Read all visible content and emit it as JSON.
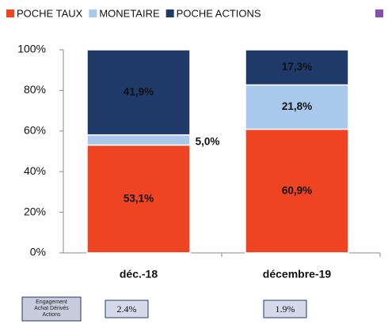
{
  "chart_data": {
    "type": "stacked_bar",
    "categories": [
      "déc.-18",
      "décembre-19"
    ],
    "series": [
      {
        "name": "POCHE TAUX",
        "color": "#ee4422",
        "values": [
          53.1,
          60.9
        ],
        "value_labels": [
          "53,1%",
          "60,9%"
        ]
      },
      {
        "name": "MONETAIRE",
        "color": "#a9c9ec",
        "values": [
          5.0,
          21.8
        ],
        "value_labels": [
          "5,0%",
          "21,8%"
        ]
      },
      {
        "name": "POCHE ACTIONS",
        "color": "#1f3a68",
        "values": [
          41.9,
          17.3
        ],
        "value_labels": [
          "41,9%",
          "17,3%"
        ]
      }
    ],
    "ylim": [
      0,
      100
    ],
    "yticks": [
      {
        "value": 0,
        "label": "0%"
      },
      {
        "value": 20,
        "label": "20%"
      },
      {
        "value": 40,
        "label": "40%"
      },
      {
        "value": 60,
        "label": "60%"
      },
      {
        "value": 80,
        "label": "80%"
      },
      {
        "value": 100,
        "label": "100%"
      }
    ]
  },
  "footer": {
    "label": "Engagement Achat Dérivés Actions",
    "values": [
      "2.4%",
      "1.9%"
    ]
  }
}
